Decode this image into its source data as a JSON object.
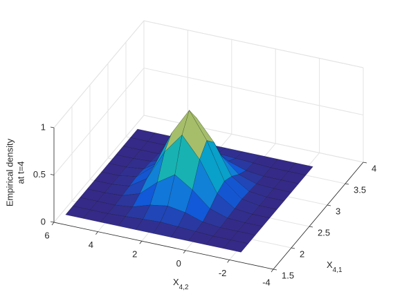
{
  "chart_data": {
    "type": "surface",
    "xlabel": {
      "text": "X",
      "sub": "4,1"
    },
    "ylabel": {
      "text": "X",
      "sub": "4,2"
    },
    "zlabel": [
      "Empirical density",
      "at t=4"
    ],
    "x": [
      1.7,
      1.9,
      2.1,
      2.3,
      2.5,
      2.7,
      2.9,
      3.1,
      3.3,
      3.5,
      3.7
    ],
    "y": [
      -2.2,
      -1.4,
      -0.6,
      0.2,
      1.0,
      1.8,
      2.6,
      3.4,
      4.2,
      5.0,
      5.8
    ],
    "z": [
      [
        0,
        0,
        0,
        0,
        0,
        0,
        0,
        0,
        0,
        0,
        0
      ],
      [
        0,
        0,
        0,
        0,
        0,
        0,
        0,
        0,
        0,
        0,
        0
      ],
      [
        0,
        0,
        0,
        0.01,
        0.02,
        0.03,
        0.02,
        0.01,
        0,
        0,
        0
      ],
      [
        0,
        0.01,
        0.02,
        0.07,
        0.14,
        0.18,
        0.14,
        0.07,
        0.02,
        0.01,
        0
      ],
      [
        0,
        0.02,
        0.08,
        0.23,
        0.46,
        0.57,
        0.46,
        0.23,
        0.08,
        0.02,
        0
      ],
      [
        0,
        0.03,
        0.11,
        0.35,
        0.68,
        0.85,
        0.68,
        0.35,
        0.11,
        0.03,
        0
      ],
      [
        0,
        0.02,
        0.08,
        0.23,
        0.46,
        0.57,
        0.46,
        0.23,
        0.08,
        0.02,
        0
      ],
      [
        0,
        0.01,
        0.02,
        0.07,
        0.14,
        0.18,
        0.14,
        0.07,
        0.02,
        0.01,
        0
      ],
      [
        0,
        0,
        0,
        0.01,
        0.02,
        0.03,
        0.02,
        0.01,
        0,
        0,
        0
      ],
      [
        0,
        0,
        0,
        0,
        0,
        0,
        0,
        0,
        0,
        0,
        0
      ],
      [
        0,
        0,
        0,
        0,
        0,
        0,
        0,
        0,
        0,
        0,
        0
      ]
    ],
    "xlim": [
      1.5,
      4
    ],
    "xticks": [
      1.5,
      2,
      2.5,
      3,
      3.5,
      4
    ],
    "ylim": [
      -4,
      6
    ],
    "yticks": [
      -4,
      -2,
      0,
      2,
      4,
      6
    ],
    "zlim": [
      0,
      1
    ],
    "zticks": [
      0,
      0.5,
      1
    ],
    "grid": true,
    "colormap": "parula"
  }
}
